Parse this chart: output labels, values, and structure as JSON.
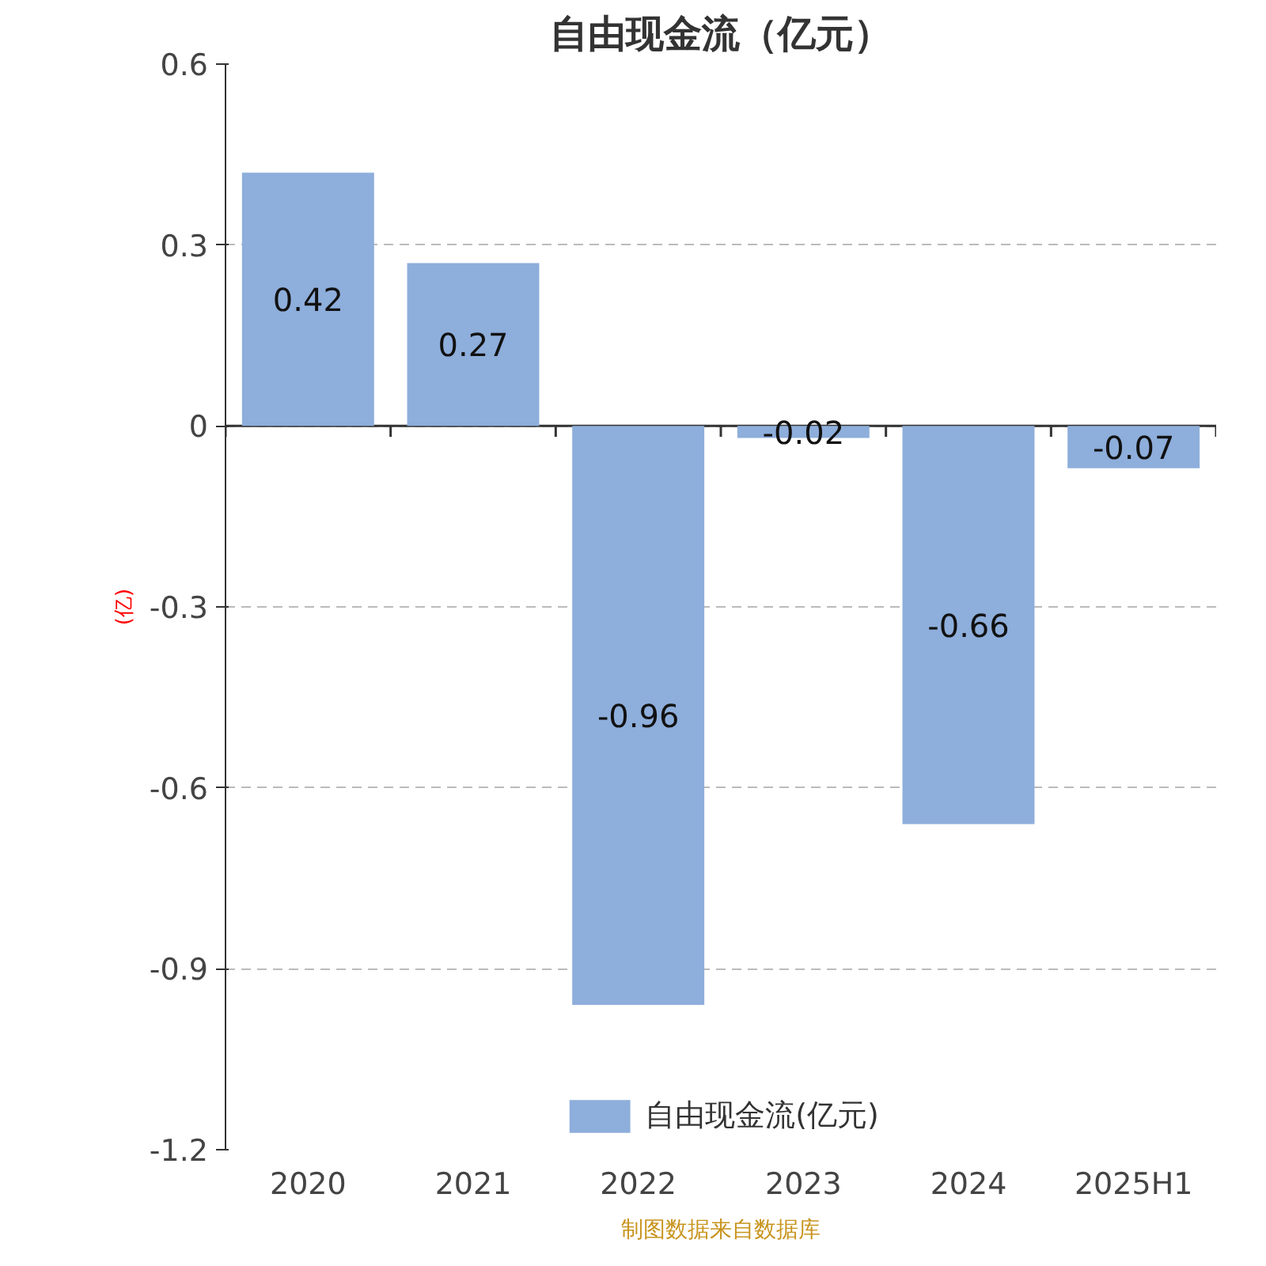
{
  "chart_data": {
    "type": "bar",
    "title": "自由现金流（亿元）",
    "ylabel": "(亿)",
    "categories": [
      "2020",
      "2021",
      "2022",
      "2023",
      "2024",
      "2025H1"
    ],
    "series": [
      {
        "name": "自由现金流(亿元)",
        "color": "#8eaedb",
        "values": [
          0.42,
          0.27,
          -0.96,
          -0.02,
          -0.66,
          -0.07
        ]
      }
    ],
    "ylim": [
      -1.2,
      0.6
    ],
    "yticks": [
      -1.2,
      -0.9,
      -0.6,
      -0.3,
      0,
      0.3,
      0.6
    ],
    "grid": "y",
    "legend": "bottom",
    "data_labels": true,
    "annotations": [
      "制图数据来自数据库"
    ]
  }
}
